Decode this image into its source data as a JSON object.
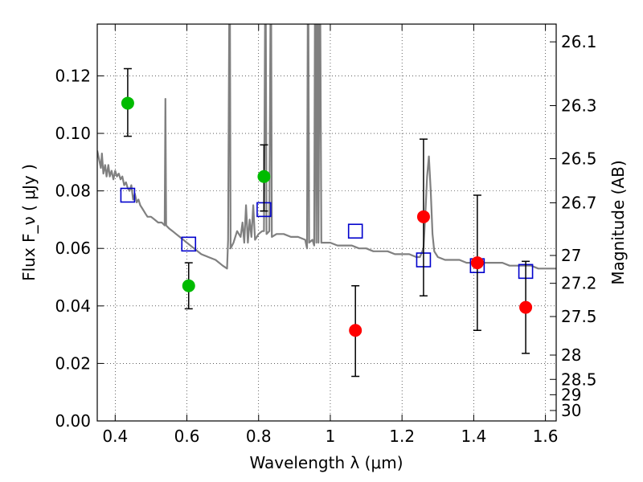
{
  "chart_data": {
    "type": "scatter",
    "xlabel": "Wavelength  λ (μm)",
    "ylabel": "Flux  F_ν  ( μJy )",
    "y2label": "Magnitude (AB)",
    "xlim": [
      0.35,
      1.63
    ],
    "ylim": [
      0.0,
      0.138
    ],
    "grid": true,
    "x_ticks": [
      "0.4",
      "0.6",
      "0.8",
      "1",
      "1.2",
      "1.4",
      "1.6"
    ],
    "x_tick_values": [
      0.4,
      0.6,
      0.8,
      1.0,
      1.2,
      1.4,
      1.6
    ],
    "y_ticks": [
      "0.00",
      "0.02",
      "0.04",
      "0.06",
      "0.08",
      "0.10",
      "0.12"
    ],
    "y_tick_values": [
      0.0,
      0.02,
      0.04,
      0.06,
      0.08,
      0.1,
      0.12
    ],
    "mag_ticks": [
      {
        "label": "26.1",
        "mag": 26.1
      },
      {
        "label": "26.3",
        "mag": 26.3
      },
      {
        "label": "26.5",
        "mag": 26.5
      },
      {
        "label": "26.7",
        "mag": 26.7
      },
      {
        "label": "27",
        "mag": 27.0
      },
      {
        "label": "27.2",
        "mag": 27.2
      },
      {
        "label": "27.5",
        "mag": 27.5
      },
      {
        "label": "28",
        "mag": 28.0
      },
      {
        "label": "28.5",
        "mag": 28.5
      },
      {
        "label": "29",
        "mag": 29.0
      },
      {
        "label": "30",
        "mag": 30.0
      }
    ],
    "series": [
      {
        "kind": "line",
        "color": "#808080",
        "points": [
          [
            0.35,
            0.094
          ],
          [
            0.355,
            0.091
          ],
          [
            0.36,
            0.088
          ],
          [
            0.363,
            0.093
          ],
          [
            0.367,
            0.086
          ],
          [
            0.372,
            0.089
          ],
          [
            0.376,
            0.085
          ],
          [
            0.381,
            0.089
          ],
          [
            0.385,
            0.085
          ],
          [
            0.39,
            0.087
          ],
          [
            0.395,
            0.084
          ],
          [
            0.4,
            0.087
          ],
          [
            0.405,
            0.085
          ],
          [
            0.41,
            0.086
          ],
          [
            0.415,
            0.084
          ],
          [
            0.42,
            0.085
          ],
          [
            0.425,
            0.082
          ],
          [
            0.43,
            0.083
          ],
          [
            0.435,
            0.081
          ],
          [
            0.44,
            0.08
          ],
          [
            0.445,
            0.082
          ],
          [
            0.45,
            0.077
          ],
          [
            0.455,
            0.079
          ],
          [
            0.46,
            0.076
          ],
          [
            0.465,
            0.077
          ],
          [
            0.47,
            0.075
          ],
          [
            0.475,
            0.074
          ],
          [
            0.48,
            0.073
          ],
          [
            0.485,
            0.072
          ],
          [
            0.49,
            0.071
          ],
          [
            0.5,
            0.071
          ],
          [
            0.51,
            0.07
          ],
          [
            0.52,
            0.069
          ],
          [
            0.53,
            0.069
          ],
          [
            0.538,
            0.068
          ],
          [
            0.54,
            0.112
          ],
          [
            0.542,
            0.068
          ],
          [
            0.55,
            0.067
          ],
          [
            0.56,
            0.066
          ],
          [
            0.57,
            0.065
          ],
          [
            0.58,
            0.064
          ],
          [
            0.59,
            0.063
          ],
          [
            0.6,
            0.062
          ],
          [
            0.62,
            0.06
          ],
          [
            0.64,
            0.058
          ],
          [
            0.66,
            0.057
          ],
          [
            0.68,
            0.056
          ],
          [
            0.7,
            0.054
          ],
          [
            0.712,
            0.053
          ],
          [
            0.715,
            0.063
          ],
          [
            0.718,
            0.14
          ],
          [
            0.72,
            0.14
          ],
          [
            0.722,
            0.06
          ],
          [
            0.73,
            0.062
          ],
          [
            0.74,
            0.066
          ],
          [
            0.75,
            0.064
          ],
          [
            0.755,
            0.069
          ],
          [
            0.76,
            0.062
          ],
          [
            0.765,
            0.075
          ],
          [
            0.77,
            0.062
          ],
          [
            0.775,
            0.07
          ],
          [
            0.78,
            0.064
          ],
          [
            0.785,
            0.075
          ],
          [
            0.79,
            0.063
          ],
          [
            0.8,
            0.065
          ],
          [
            0.81,
            0.066
          ],
          [
            0.815,
            0.066
          ],
          [
            0.818,
            0.14
          ],
          [
            0.82,
            0.14
          ],
          [
            0.822,
            0.065
          ],
          [
            0.83,
            0.066
          ],
          [
            0.833,
            0.14
          ],
          [
            0.835,
            0.14
          ],
          [
            0.837,
            0.064
          ],
          [
            0.85,
            0.065
          ],
          [
            0.87,
            0.065
          ],
          [
            0.89,
            0.064
          ],
          [
            0.91,
            0.064
          ],
          [
            0.93,
            0.063
          ],
          [
            0.935,
            0.06
          ],
          [
            0.937,
            0.14
          ],
          [
            0.939,
            0.14
          ],
          [
            0.941,
            0.062
          ],
          [
            0.95,
            0.063
          ],
          [
            0.955,
            0.061
          ],
          [
            0.957,
            0.14
          ],
          [
            0.959,
            0.14
          ],
          [
            0.961,
            0.062
          ],
          [
            0.963,
            0.14
          ],
          [
            0.965,
            0.14
          ],
          [
            0.967,
            0.062
          ],
          [
            0.97,
            0.14
          ],
          [
            0.972,
            0.14
          ],
          [
            0.975,
            0.062
          ],
          [
            0.99,
            0.062
          ],
          [
            1.0,
            0.062
          ],
          [
            1.02,
            0.061
          ],
          [
            1.04,
            0.061
          ],
          [
            1.06,
            0.061
          ],
          [
            1.08,
            0.06
          ],
          [
            1.1,
            0.06
          ],
          [
            1.12,
            0.059
          ],
          [
            1.14,
            0.059
          ],
          [
            1.16,
            0.059
          ],
          [
            1.18,
            0.058
          ],
          [
            1.2,
            0.058
          ],
          [
            1.22,
            0.058
          ],
          [
            1.24,
            0.057
          ],
          [
            1.25,
            0.057
          ],
          [
            1.26,
            0.06
          ],
          [
            1.265,
            0.072
          ],
          [
            1.27,
            0.085
          ],
          [
            1.275,
            0.092
          ],
          [
            1.28,
            0.08
          ],
          [
            1.285,
            0.065
          ],
          [
            1.29,
            0.059
          ],
          [
            1.3,
            0.057
          ],
          [
            1.32,
            0.056
          ],
          [
            1.34,
            0.056
          ],
          [
            1.36,
            0.056
          ],
          [
            1.38,
            0.055
          ],
          [
            1.4,
            0.055
          ],
          [
            1.42,
            0.055
          ],
          [
            1.44,
            0.055
          ],
          [
            1.46,
            0.055
          ],
          [
            1.48,
            0.055
          ],
          [
            1.5,
            0.054
          ],
          [
            1.52,
            0.054
          ],
          [
            1.54,
            0.054
          ],
          [
            1.56,
            0.054
          ],
          [
            1.58,
            0.053
          ],
          [
            1.6,
            0.053
          ],
          [
            1.63,
            0.053
          ]
        ]
      },
      {
        "kind": "open-square",
        "color": "#0000cc",
        "points": [
          [
            0.435,
            0.0785
          ],
          [
            0.605,
            0.0615
          ],
          [
            0.815,
            0.0735
          ],
          [
            1.07,
            0.066
          ],
          [
            1.26,
            0.056
          ],
          [
            1.41,
            0.054
          ],
          [
            1.545,
            0.052
          ]
        ]
      },
      {
        "kind": "filled-circle",
        "color": "#00bb00",
        "points": [
          {
            "x": 0.435,
            "y": 0.1105,
            "err_low": 0.099,
            "err_high": 0.1225
          },
          {
            "x": 0.605,
            "y": 0.047,
            "err_low": 0.039,
            "err_high": 0.055
          },
          {
            "x": 0.815,
            "y": 0.085,
            "err_low": 0.073,
            "err_high": 0.096
          }
        ]
      },
      {
        "kind": "filled-circle",
        "color": "#ff0000",
        "points": [
          {
            "x": 1.07,
            "y": 0.0315,
            "err_low": 0.0155,
            "err_high": 0.047
          },
          {
            "x": 1.26,
            "y": 0.071,
            "err_low": 0.0435,
            "err_high": 0.098
          },
          {
            "x": 1.41,
            "y": 0.055,
            "err_low": 0.0315,
            "err_high": 0.0785
          },
          {
            "x": 1.545,
            "y": 0.0395,
            "err_low": 0.0235,
            "err_high": 0.0555
          }
        ]
      }
    ]
  }
}
